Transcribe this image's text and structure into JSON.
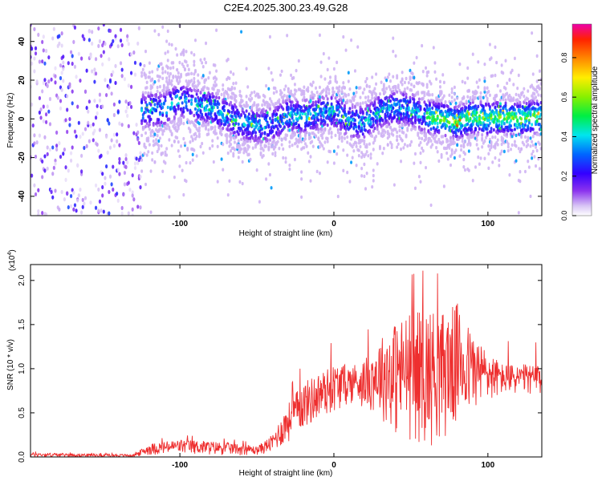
{
  "chart_data": [
    {
      "type": "heatmap",
      "title": "C2E4.2025.300.23.49.G28",
      "xlabel": "Height of straight line (km)",
      "ylabel": "Frequency (Hz)",
      "xlim": [
        -197,
        135
      ],
      "ylim": [
        -50,
        49
      ],
      "x_ticks": [
        -100,
        0,
        100
      ],
      "y_ticks": [
        -40,
        -20,
        0,
        20,
        40
      ],
      "colorbar": {
        "label": "Normalized spectral amplitude",
        "range": [
          0,
          0.97
        ],
        "ticks": [
          0.0,
          0.2,
          0.4,
          0.6,
          0.8
        ]
      },
      "doppler_center_track": {
        "x": [
          -130,
          -110,
          -100,
          -90,
          -80,
          -70,
          -60,
          -50,
          -40,
          -30,
          -20,
          -10,
          0,
          10,
          20,
          30,
          40,
          50,
          60,
          70,
          80,
          90,
          100,
          110,
          120,
          130
        ],
        "y": [
          4,
          5,
          10,
          7,
          6,
          2,
          -2,
          -4,
          -3,
          2,
          1,
          3,
          4,
          -1,
          -2,
          4,
          6,
          5,
          1,
          0,
          -2,
          1,
          0,
          1,
          0,
          1
        ]
      }
    },
    {
      "type": "line",
      "series_name": "SNR",
      "xlabel": "Height of straight line (km)",
      "ylabel": "SNR (10 * v/v)",
      "y_multiplier": "(x10^4)",
      "y_multiplier_base": "(x10",
      "y_multiplier_exp": "4",
      "y_multiplier_close": ")",
      "xlim": [
        -197,
        135
      ],
      "ylim": [
        0,
        2.18
      ],
      "x_ticks": [
        -100,
        0,
        100
      ],
      "y_ticks": [
        "0.0",
        "0.5",
        "1.0",
        "1.5",
        "2.0"
      ],
      "color": "#ee2f2f",
      "envelope_x": [
        -197,
        -170,
        -130,
        -120,
        -100,
        -80,
        -60,
        -50,
        -40,
        -30,
        -20,
        -10,
        0,
        10,
        20,
        30,
        40,
        50,
        60,
        70,
        80,
        90,
        100,
        110,
        120,
        130,
        135
      ],
      "envelope_high": [
        0.05,
        0.04,
        0.03,
        0.15,
        0.2,
        0.18,
        0.15,
        0.12,
        0.25,
        0.6,
        0.85,
        0.95,
        1.05,
        1.05,
        1.1,
        1.35,
        1.55,
        1.65,
        1.7,
        1.65,
        1.75,
        1.4,
        1.2,
        1.05,
        1.05,
        1.05,
        1.0
      ],
      "envelope_low": [
        0.0,
        0.0,
        0.0,
        0.02,
        0.03,
        0.02,
        0.02,
        0.02,
        0.05,
        0.15,
        0.3,
        0.4,
        0.5,
        0.6,
        0.55,
        0.45,
        0.2,
        0.15,
        0.1,
        0.15,
        0.3,
        0.5,
        0.6,
        0.7,
        0.7,
        0.7,
        0.7
      ]
    }
  ]
}
